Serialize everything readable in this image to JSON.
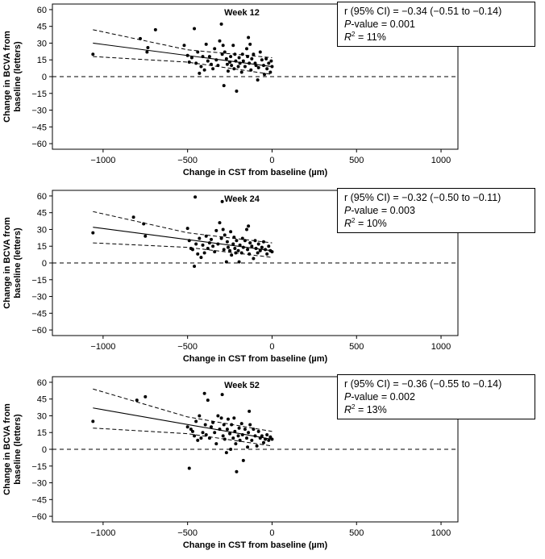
{
  "shared": {
    "xlabel": "Change in CST from baseline (µm)",
    "ylabel_line1": "Change in BCVA from",
    "ylabel_line2": "baseline (letters)",
    "xlim": [
      -1300,
      1100
    ],
    "ylim": [
      -65,
      65
    ],
    "xticks": [
      -1000,
      -500,
      0,
      500,
      1000
    ],
    "yticks": [
      60,
      45,
      30,
      15,
      0,
      -15,
      -30,
      -45,
      -60
    ],
    "xtick_labels": [
      "−1000",
      "−500",
      "0",
      "500",
      "1000"
    ],
    "ytick_labels": [
      "60",
      "45",
      "30",
      "15",
      "0",
      "−15",
      "−30",
      "−45",
      "−60"
    ]
  },
  "chart_data": [
    {
      "type": "scatter",
      "title": "Week 12",
      "stats": {
        "r_label": "r (95% CI) = −0.34 (−0.51 to −0.14)",
        "p_label_prefix": "P",
        "p_label_rest": "-value = 0.001",
        "r2_prefix": "R",
        "r2_sup": "2",
        "r2_rest": " = 11%"
      },
      "fit": {
        "x": [
          -1060,
          0
        ],
        "y": [
          30,
          9
        ]
      },
      "ci_upper": {
        "x": [
          -1060,
          -500,
          0
        ],
        "y": [
          42,
          24,
          17
        ]
      },
      "ci_lower": {
        "x": [
          -1060,
          -500,
          0
        ],
        "y": [
          18,
          13,
          2
        ]
      },
      "points": [
        [
          -1060,
          20
        ],
        [
          -780,
          34
        ],
        [
          -740,
          22
        ],
        [
          -735,
          26
        ],
        [
          -690,
          42
        ],
        [
          -520,
          28
        ],
        [
          -500,
          19
        ],
        [
          -490,
          13
        ],
        [
          -475,
          17
        ],
        [
          -460,
          43
        ],
        [
          -450,
          12
        ],
        [
          -440,
          22
        ],
        [
          -430,
          3
        ],
        [
          -420,
          9
        ],
        [
          -410,
          18
        ],
        [
          -400,
          6
        ],
        [
          -390,
          29
        ],
        [
          -380,
          14
        ],
        [
          -370,
          18
        ],
        [
          -360,
          11
        ],
        [
          -350,
          7
        ],
        [
          -340,
          25
        ],
        [
          -330,
          15
        ],
        [
          -320,
          10
        ],
        [
          -310,
          32
        ],
        [
          -300,
          47
        ],
        [
          -295,
          20
        ],
        [
          -290,
          28
        ],
        [
          -285,
          -8
        ],
        [
          -280,
          22
        ],
        [
          -270,
          16
        ],
        [
          -265,
          11
        ],
        [
          -260,
          5
        ],
        [
          -250,
          13
        ],
        [
          -245,
          18
        ],
        [
          -240,
          10
        ],
        [
          -230,
          28
        ],
        [
          -225,
          7
        ],
        [
          -220,
          20
        ],
        [
          -215,
          14
        ],
        [
          -210,
          -13
        ],
        [
          -200,
          9
        ],
        [
          -195,
          17
        ],
        [
          -190,
          12
        ],
        [
          -180,
          4
        ],
        [
          -175,
          20
        ],
        [
          -170,
          14
        ],
        [
          -160,
          9
        ],
        [
          -150,
          25
        ],
        [
          -145,
          18
        ],
        [
          -140,
          35
        ],
        [
          -135,
          12
        ],
        [
          -130,
          29
        ],
        [
          -125,
          6
        ],
        [
          -120,
          16
        ],
        [
          -110,
          20
        ],
        [
          -100,
          12
        ],
        [
          -95,
          10
        ],
        [
          -85,
          -3
        ],
        [
          -80,
          8
        ],
        [
          -70,
          22
        ],
        [
          -60,
          15
        ],
        [
          -50,
          10
        ],
        [
          -45,
          2
        ],
        [
          -35,
          16
        ],
        [
          -30,
          7
        ],
        [
          -20,
          12
        ],
        [
          -10,
          4
        ],
        [
          -5,
          14
        ],
        [
          0,
          9
        ]
      ]
    },
    {
      "type": "scatter",
      "title": "Week 24",
      "stats": {
        "r_label": "r (95% CI) = −0.32 (−0.50 to −0.11)",
        "p_label_prefix": "P",
        "p_label_rest": "-value = 0.003",
        "r2_prefix": "R",
        "r2_sup": "2",
        "r2_rest": " = 10%"
      },
      "fit": {
        "x": [
          -1060,
          0
        ],
        "y": [
          32,
          11
        ]
      },
      "ci_upper": {
        "x": [
          -1060,
          -500,
          0
        ],
        "y": [
          46,
          27,
          18
        ]
      },
      "ci_lower": {
        "x": [
          -1060,
          -500,
          0
        ],
        "y": [
          18,
          14,
          5
        ]
      },
      "points": [
        [
          -1060,
          27
        ],
        [
          -820,
          41
        ],
        [
          -760,
          35
        ],
        [
          -750,
          24
        ],
        [
          -500,
          31
        ],
        [
          -490,
          20
        ],
        [
          -480,
          13
        ],
        [
          -470,
          12
        ],
        [
          -460,
          -3
        ],
        [
          -455,
          59
        ],
        [
          -450,
          17
        ],
        [
          -440,
          8
        ],
        [
          -430,
          22
        ],
        [
          -420,
          5
        ],
        [
          -410,
          16
        ],
        [
          -400,
          9
        ],
        [
          -390,
          24
        ],
        [
          -380,
          13
        ],
        [
          -370,
          18
        ],
        [
          -360,
          21
        ],
        [
          -350,
          15
        ],
        [
          -340,
          10
        ],
        [
          -330,
          29
        ],
        [
          -320,
          17
        ],
        [
          -310,
          36
        ],
        [
          -300,
          22
        ],
        [
          -295,
          55
        ],
        [
          -290,
          30
        ],
        [
          -285,
          12
        ],
        [
          -280,
          25
        ],
        [
          -270,
          1
        ],
        [
          -265,
          19
        ],
        [
          -260,
          14
        ],
        [
          -250,
          11
        ],
        [
          -245,
          28
        ],
        [
          -240,
          7
        ],
        [
          -230,
          17
        ],
        [
          -225,
          23
        ],
        [
          -220,
          13
        ],
        [
          -215,
          9
        ],
        [
          -210,
          20
        ],
        [
          -200,
          11
        ],
        [
          -195,
          1
        ],
        [
          -190,
          16
        ],
        [
          -180,
          9
        ],
        [
          -175,
          22
        ],
        [
          -170,
          14
        ],
        [
          -160,
          20
        ],
        [
          -150,
          30
        ],
        [
          -145,
          12
        ],
        [
          -140,
          33
        ],
        [
          -135,
          8
        ],
        [
          -130,
          18
        ],
        [
          -120,
          15
        ],
        [
          -110,
          4
        ],
        [
          -100,
          20
        ],
        [
          -95,
          13
        ],
        [
          -85,
          9
        ],
        [
          -80,
          17
        ],
        [
          -70,
          11
        ],
        [
          -60,
          14
        ],
        [
          -50,
          19
        ],
        [
          -40,
          12
        ],
        [
          -30,
          8
        ],
        [
          -20,
          15
        ],
        [
          -10,
          11
        ],
        [
          0,
          10
        ]
      ]
    },
    {
      "type": "scatter",
      "title": "Week 52",
      "stats": {
        "r_label": "r (95% CI) = −0.36 (−0.55 to −0.14)",
        "p_label_prefix": "P",
        "p_label_rest": "-value = 0.002",
        "r2_prefix": "R",
        "r2_sup": "2",
        "r2_rest": " = 13%"
      },
      "fit": {
        "x": [
          -1060,
          0
        ],
        "y": [
          37,
          9
        ]
      },
      "ci_upper": {
        "x": [
          -1060,
          -500,
          0
        ],
        "y": [
          54,
          29,
          16
        ]
      },
      "ci_lower": {
        "x": [
          -1060,
          -500,
          0
        ],
        "y": [
          19,
          14,
          3
        ]
      },
      "points": [
        [
          -1060,
          25
        ],
        [
          -800,
          44
        ],
        [
          -750,
          47
        ],
        [
          -500,
          20
        ],
        [
          -490,
          -17
        ],
        [
          -480,
          18
        ],
        [
          -470,
          16
        ],
        [
          -460,
          12
        ],
        [
          -450,
          25
        ],
        [
          -440,
          8
        ],
        [
          -430,
          30
        ],
        [
          -420,
          10
        ],
        [
          -410,
          15
        ],
        [
          -400,
          50
        ],
        [
          -395,
          22
        ],
        [
          -390,
          13
        ],
        [
          -380,
          44
        ],
        [
          -370,
          10
        ],
        [
          -360,
          20
        ],
        [
          -350,
          24
        ],
        [
          -340,
          15
        ],
        [
          -330,
          5
        ],
        [
          -320,
          30
        ],
        [
          -310,
          18
        ],
        [
          -300,
          28
        ],
        [
          -295,
          49
        ],
        [
          -290,
          12
        ],
        [
          -285,
          22
        ],
        [
          -280,
          9
        ],
        [
          -270,
          -3
        ],
        [
          -265,
          18
        ],
        [
          -260,
          27
        ],
        [
          -250,
          14
        ],
        [
          -245,
          0
        ],
        [
          -240,
          22
        ],
        [
          -230,
          10
        ],
        [
          -225,
          28
        ],
        [
          -220,
          16
        ],
        [
          -215,
          5
        ],
        [
          -210,
          -20
        ],
        [
          -200,
          12
        ],
        [
          -195,
          19
        ],
        [
          -190,
          8
        ],
        [
          -180,
          23
        ],
        [
          -175,
          13
        ],
        [
          -170,
          -10
        ],
        [
          -160,
          18
        ],
        [
          -150,
          10
        ],
        [
          -145,
          2
        ],
        [
          -140,
          15
        ],
        [
          -135,
          34
        ],
        [
          -130,
          22
        ],
        [
          -120,
          8
        ],
        [
          -110,
          18
        ],
        [
          -100,
          12
        ],
        [
          -90,
          3
        ],
        [
          -80,
          16
        ],
        [
          -70,
          10
        ],
        [
          -60,
          12
        ],
        [
          -50,
          6
        ],
        [
          -40,
          9
        ],
        [
          -30,
          13
        ],
        [
          -20,
          8
        ],
        [
          -10,
          11
        ],
        [
          0,
          9
        ]
      ]
    }
  ]
}
